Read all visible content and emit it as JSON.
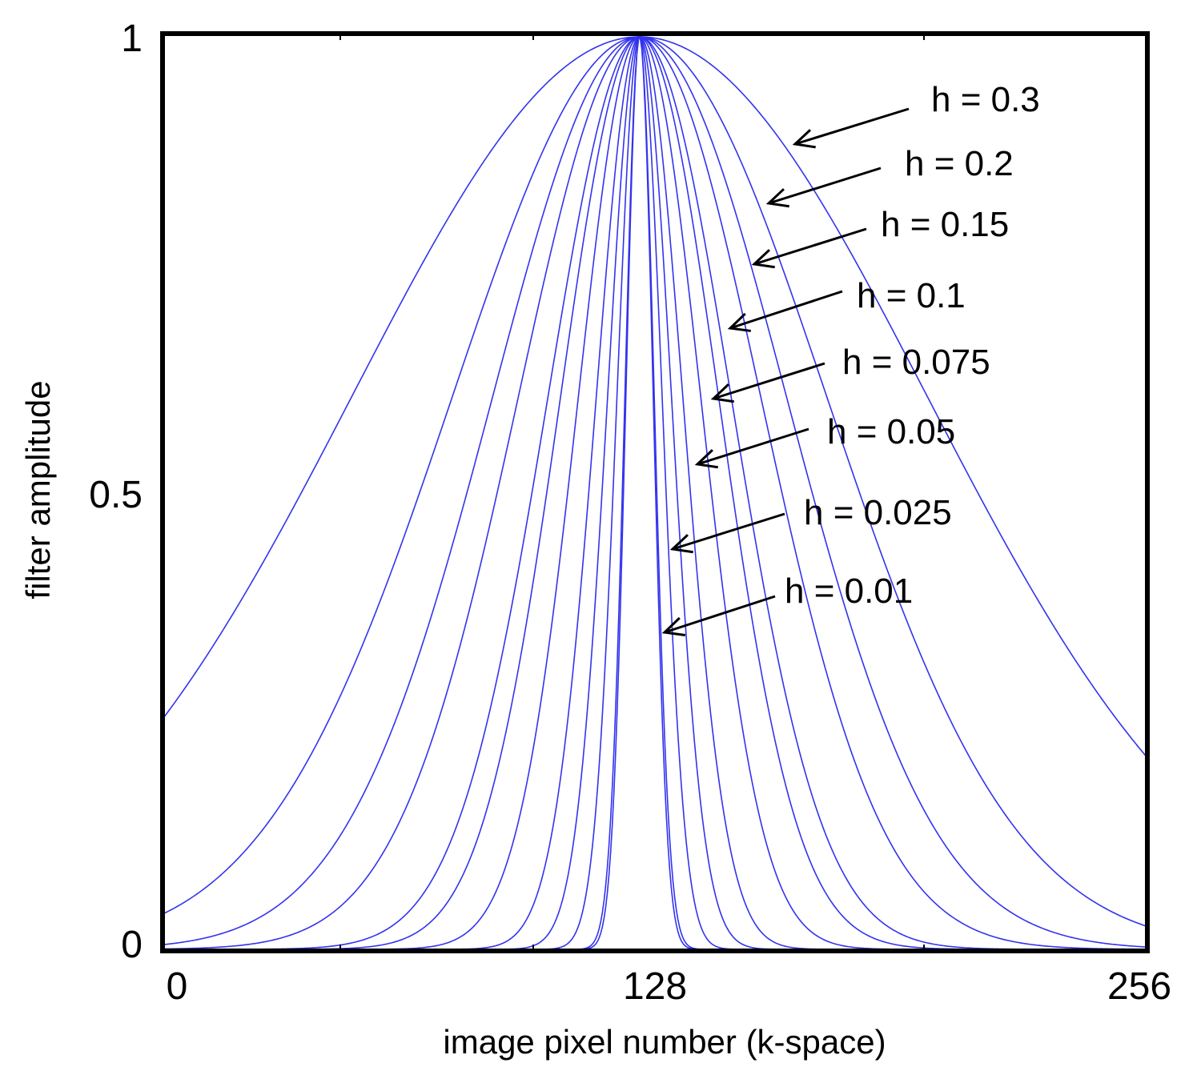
{
  "chart_data": {
    "type": "line",
    "xlabel": "image pixel number (k-space)",
    "ylabel": "filter amplitude",
    "xlim": [
      0,
      256
    ],
    "ylim": [
      0,
      1
    ],
    "x_ticks": [
      0,
      128,
      256
    ],
    "x_tick_labels": [
      "0",
      "128",
      "256"
    ],
    "y_ticks": [
      0,
      0.5,
      1
    ],
    "y_tick_labels": [
      "0",
      "0.5",
      "1"
    ],
    "grid": false,
    "line_color": "#3333ee",
    "center": 124,
    "annotations": [
      {
        "text": "h = 0.3",
        "h": 0.3
      },
      {
        "text": "h = 0.2",
        "h": 0.2
      },
      {
        "text": "h = 0.15",
        "h": 0.15
      },
      {
        "text": "h = 0.1",
        "h": 0.1
      },
      {
        "text": "h = 0.075",
        "h": 0.075
      },
      {
        "text": "h = 0.05",
        "h": 0.05
      },
      {
        "text": "h = 0.025",
        "h": 0.025
      },
      {
        "text": "h = 0.01",
        "h": 0.01
      }
    ],
    "series_edges": [
      {
        "edge_value": 0.21
      },
      {
        "edge_value": 0.025
      },
      {
        "edge_value": 0.0025
      },
      {
        "edge_value": 0.00015
      },
      {
        "edge_value": 2e-07
      },
      {
        "edge_value": 1e-09
      },
      {
        "edge_value": 1e-15
      },
      {
        "edge_value": 1e-30
      },
      {
        "edge_value": 1e-55
      },
      {
        "edge_value": 1e-110
      },
      {
        "edge_value": 1e-260
      },
      {
        "edge_value": 1e-300
      }
    ]
  }
}
